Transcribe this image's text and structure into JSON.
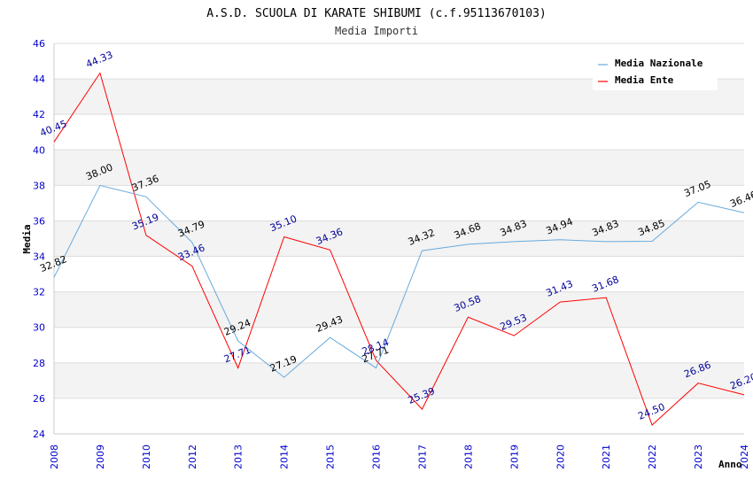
{
  "chart_data": {
    "type": "line",
    "title": "A.S.D. SCUOLA DI KARATE SHIBUMI (c.f.95113670103)",
    "subtitle": "Media Importi",
    "xlabel": "Anno",
    "ylabel": "Media",
    "ylim": [
      24,
      46
    ],
    "yticks": [
      24,
      26,
      28,
      30,
      32,
      34,
      36,
      38,
      40,
      42,
      44,
      46
    ],
    "categories": [
      "2008",
      "2009",
      "2010",
      "2012",
      "2013",
      "2014",
      "2015",
      "2016",
      "2017",
      "2018",
      "2019",
      "2020",
      "2021",
      "2022",
      "2023",
      "2024"
    ],
    "grid": true,
    "legend_position": "top-right",
    "series": [
      {
        "name": "Media Nazionale",
        "color": "#66aadd",
        "label_color": "#000000",
        "values": [
          32.82,
          38.0,
          37.36,
          34.79,
          29.24,
          27.19,
          29.43,
          27.71,
          34.32,
          34.68,
          34.83,
          34.94,
          34.83,
          34.85,
          37.05,
          36.46
        ],
        "labels": [
          "32.82",
          "38.00",
          "37.36",
          "34.79",
          "29.24",
          "27.19",
          "29.43",
          "27.71",
          "34.32",
          "34.68",
          "34.83",
          "34.94",
          "34.83",
          "34.85",
          "37.05",
          "36.46"
        ]
      },
      {
        "name": "Media Ente",
        "color": "#ff0000",
        "label_color": "#000099",
        "values": [
          40.45,
          44.33,
          35.19,
          33.46,
          27.71,
          35.1,
          34.36,
          28.14,
          25.39,
          30.58,
          29.53,
          31.43,
          31.68,
          24.5,
          26.86,
          26.2
        ],
        "labels": [
          "40.45",
          "44.33",
          "35.19",
          "33.46",
          "27.71",
          "35.10",
          "34.36",
          "28.14",
          "25.39",
          "30.58",
          "29.53",
          "31.43",
          "31.68",
          "24.50",
          "26.86",
          "26.20"
        ]
      }
    ]
  }
}
